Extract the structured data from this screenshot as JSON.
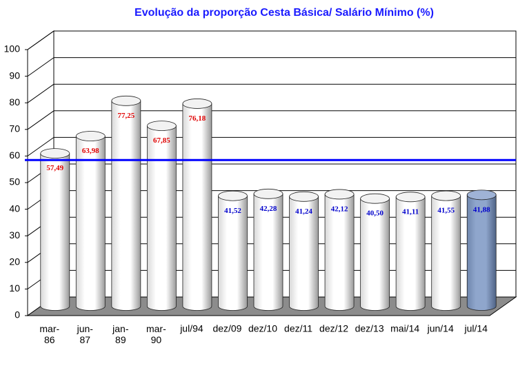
{
  "chart_data": {
    "type": "bar",
    "title": "Evolução da proporção Cesta Básica/ Salário Mínimo (%)",
    "categories": [
      "mar-\n86",
      "jun-\n87",
      "jan-\n89",
      "mar-\n90",
      "jul/94",
      "dez/09",
      "dez/10",
      "dez/11",
      "dez/12",
      "dez/13",
      "mai/14",
      "jun/14",
      "jul/14"
    ],
    "values": [
      57.49,
      63.98,
      77.25,
      67.85,
      76.18,
      41.52,
      42.28,
      41.24,
      42.12,
      40.5,
      41.11,
      41.55,
      41.88
    ],
    "value_labels": [
      "57,49",
      "63,98",
      "77,25",
      "67,85",
      "76,18",
      "41,52",
      "42,28",
      "41,24",
      "42,12",
      "40,50",
      "41,11",
      "41,55",
      "41,88"
    ],
    "label_colors": [
      "#e00000",
      "#e00000",
      "#e00000",
      "#e00000",
      "#e00000",
      "#0000cc",
      "#0000cc",
      "#0000cc",
      "#0000cc",
      "#0000cc",
      "#0000cc",
      "#0000cc",
      "#0000cc"
    ],
    "bar_colors": [
      "#ffffff",
      "#ffffff",
      "#ffffff",
      "#ffffff",
      "#ffffff",
      "#ffffff",
      "#ffffff",
      "#ffffff",
      "#ffffff",
      "#ffffff",
      "#ffffff",
      "#ffffff",
      "#8fa6cc"
    ],
    "ylim": [
      0,
      100
    ],
    "yticks": [
      0,
      10,
      20,
      30,
      40,
      50,
      60,
      70,
      80,
      90,
      100
    ],
    "grid": true,
    "reference_line": {
      "value": 58.5,
      "color": "#0000ff"
    }
  }
}
